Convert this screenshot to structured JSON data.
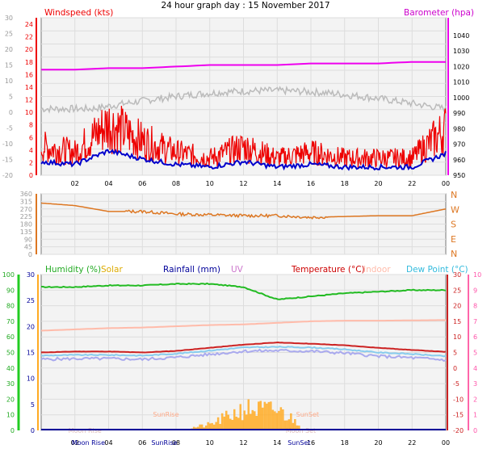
{
  "title": "24 hour graph day : 15 November 2017",
  "colors": {
    "wind": "#ee0000",
    "gust_fill": "#ff5555",
    "avg": "#0000cc",
    "baro": "#ee00ee",
    "temp_grey": "#bbbbbb",
    "dir": "#dd7722",
    "humidity": "#22bb22",
    "solar": "#ffaa22",
    "temperature": "#cc2222",
    "indoor": "#ffbbaa",
    "dewpoint": "#88ccee",
    "bluish": "#aaaaee",
    "rainfall": "#000099"
  },
  "panel1": {
    "wind_label": "Windspeed (kts)",
    "baro_label": "Barometer (hpa)",
    "left_outer_ticks": [
      "30",
      "25",
      "20",
      "15",
      "10",
      "5",
      "0",
      "-5",
      "-10",
      "-15",
      "-20"
    ],
    "left_inner_ticks": [
      "24",
      "22",
      "20",
      "18",
      "16",
      "14",
      "12",
      "10",
      "8",
      "6",
      "4",
      "2",
      "0"
    ],
    "right_ticks": [
      "1040",
      "1030",
      "1020",
      "1010",
      "1000",
      "990",
      "980",
      "970",
      "960",
      "950"
    ],
    "x_ticks": [
      "02",
      "04",
      "06",
      "08",
      "10",
      "12",
      "14",
      "16",
      "18",
      "20",
      "22",
      "00"
    ]
  },
  "panel2": {
    "left_ticks": [
      "360",
      "315",
      "270",
      "225",
      "180",
      "135",
      "90",
      "45",
      "0"
    ],
    "right_labels": [
      "N",
      "W",
      "S",
      "E",
      "N"
    ]
  },
  "panel3": {
    "labels": {
      "humidity": "Humidity (%)",
      "solar": "Solar",
      "rainfall": "Rainfall (mm)",
      "uv": "UV",
      "temperature": "Temperature (°C)",
      "indoor": "Indoor",
      "dewpoint": "Dew Point (°C)"
    },
    "hum_ticks": [
      "100",
      "90",
      "80",
      "70",
      "60",
      "50",
      "40",
      "30",
      "20",
      "10",
      "0"
    ],
    "rain_ticks": [
      "30",
      "25",
      "20",
      "15",
      "10",
      "5",
      "0"
    ],
    "uv_ticks": [
      "10",
      "9",
      "8",
      "7",
      "6",
      "5",
      "4",
      "3",
      "2",
      "1",
      "0"
    ],
    "temp_ticks": [
      "30",
      "25",
      "20",
      "15",
      "10",
      "5",
      "0",
      "-5",
      "-10",
      "-15",
      "-20"
    ],
    "x_ticks": [
      "02",
      "04",
      "06",
      "08",
      "10",
      "12",
      "14",
      "16",
      "18",
      "20",
      "22",
      "00"
    ],
    "events": [
      "Moon Rise",
      "SunRise",
      "SunSet",
      "Moon Set"
    ]
  },
  "chart_data": [
    {
      "type": "line",
      "title": "24 hour graph day : 15 November 2017",
      "x": [
        "00",
        "02",
        "04",
        "06",
        "08",
        "10",
        "12",
        "14",
        "16",
        "18",
        "20",
        "22",
        "00"
      ],
      "series": [
        {
          "name": "Windspeed (kts)",
          "values": [
            5,
            4,
            9,
            6,
            4,
            3,
            5,
            3,
            4,
            3,
            3,
            3,
            8
          ]
        },
        {
          "name": "Barometer (hpa)",
          "values": [
            1018,
            1018,
            1019,
            1019,
            1020,
            1021,
            1021,
            1021,
            1022,
            1022,
            1022,
            1023,
            1023
          ]
        }
      ],
      "ylabel": "Windspeed (kts)",
      "ylim": [
        0,
        25
      ],
      "y2label": "Barometer (hpa)",
      "y2lim": [
        950,
        1040
      ]
    },
    {
      "type": "line",
      "x": [
        "00",
        "02",
        "04",
        "06",
        "08",
        "10",
        "12",
        "14",
        "16",
        "18",
        "20",
        "22",
        "00"
      ],
      "series": [
        {
          "name": "Wind direction",
          "values": [
            305,
            290,
            255,
            255,
            240,
            235,
            230,
            230,
            220,
            225,
            230,
            230,
            270
          ]
        }
      ],
      "ylim": [
        0,
        360
      ]
    },
    {
      "type": "line",
      "x": [
        "00",
        "02",
        "04",
        "06",
        "08",
        "10",
        "12",
        "14",
        "16",
        "18",
        "20",
        "22",
        "00"
      ],
      "series": [
        {
          "name": "Humidity (%)",
          "values": [
            92,
            92,
            93,
            93,
            94,
            94,
            92,
            84,
            86,
            88,
            89,
            90,
            90
          ]
        },
        {
          "name": "Temperature (°C)",
          "values": [
            5.0,
            5.3,
            5.3,
            5.0,
            5.5,
            6.5,
            7.5,
            8.2,
            7.8,
            7.3,
            6.5,
            5.8,
            5.2
          ]
        },
        {
          "name": "Indoor",
          "values": [
            12.0,
            12.4,
            12.8,
            13.0,
            13.4,
            13.8,
            14.0,
            14.5,
            15.0,
            15.2,
            15.2,
            15.3,
            15.4
          ]
        },
        {
          "name": "Dew Point (°C)",
          "values": [
            4.0,
            4.2,
            4.2,
            4.0,
            4.6,
            5.6,
            6.6,
            6.8,
            6.6,
            6.0,
            5.0,
            4.5,
            3.8
          ]
        },
        {
          "name": "Solar",
          "values": [
            0,
            0,
            0,
            0,
            0,
            30,
            110,
            100,
            0,
            0,
            0,
            0,
            0
          ]
        }
      ],
      "ylabel": "Humidity (%)",
      "ylim": [
        0,
        100
      ],
      "y2label": "Temperature (°C)",
      "y2lim": [
        -20,
        30
      ]
    }
  ]
}
